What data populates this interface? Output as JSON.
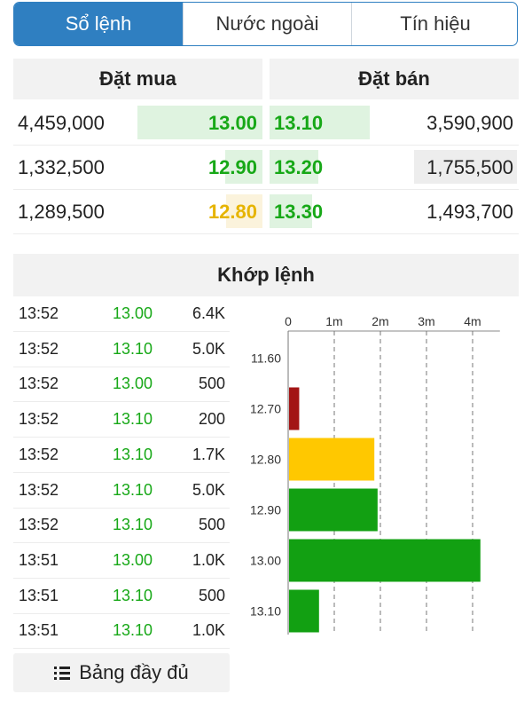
{
  "tabs": [
    {
      "label": "Sổ lệnh",
      "active": true
    },
    {
      "label": "Nước ngoài",
      "active": false
    },
    {
      "label": "Tín hiệu",
      "active": false
    }
  ],
  "order_book": {
    "buy_header": "Đặt mua",
    "sell_header": "Đặt bán",
    "rows": [
      {
        "buy_volume": "4,459,000",
        "buy_price": "13.00",
        "buy_price_color": "#17a817",
        "buy_bar": 1.0,
        "sell_price": "13.10",
        "sell_price_color": "#17a817",
        "sell_bar": 0.81,
        "sell_volume": "3,590,900"
      },
      {
        "buy_volume": "1,332,500",
        "buy_price": "12.90",
        "buy_price_color": "#17a817",
        "buy_bar": 0.3,
        "sell_price": "13.20",
        "sell_price_color": "#17a817",
        "sell_bar": 0.39,
        "sell_volume": "1,755,500"
      },
      {
        "buy_volume": "1,289,500",
        "buy_price": "12.80",
        "buy_price_color": "#e6b400",
        "buy_bar": 0.29,
        "sell_price": "13.30",
        "sell_price_color": "#17a817",
        "sell_bar": 0.34,
        "sell_volume": "1,493,700"
      }
    ]
  },
  "matched": {
    "header": "Khớp lệnh",
    "trades": [
      {
        "time": "13:52",
        "price": "13.00",
        "volume": "6.4K"
      },
      {
        "time": "13:52",
        "price": "13.10",
        "volume": "5.0K"
      },
      {
        "time": "13:52",
        "price": "13.00",
        "volume": "500"
      },
      {
        "time": "13:52",
        "price": "13.10",
        "volume": "200"
      },
      {
        "time": "13:52",
        "price": "13.10",
        "volume": "1.7K"
      },
      {
        "time": "13:52",
        "price": "13.10",
        "volume": "5.0K"
      },
      {
        "time": "13:52",
        "price": "13.10",
        "volume": "500"
      },
      {
        "time": "13:51",
        "price": "13.00",
        "volume": "1.0K"
      },
      {
        "time": "13:51",
        "price": "13.10",
        "volume": "500"
      },
      {
        "time": "13:51",
        "price": "13.10",
        "volume": "1.0K"
      }
    ],
    "full_table_label": "Bảng đầy đủ",
    "full_table_icon": "list-icon"
  },
  "chart_data": {
    "type": "bar",
    "orientation": "horizontal",
    "categories": [
      "11.60",
      "12.70",
      "12.80",
      "12.90",
      "13.00",
      "13.10"
    ],
    "values": [
      0,
      0.22,
      1.85,
      1.92,
      4.15,
      0.65
    ],
    "colors": [
      "#17a817",
      "#a31515",
      "#ffc800",
      "#12a012",
      "#12a012",
      "#12a012"
    ],
    "x_ticks": [
      0,
      1,
      2,
      3,
      4
    ],
    "x_tick_labels": [
      "0",
      "1m",
      "2m",
      "3m",
      "4m"
    ],
    "xlim": [
      0,
      4.4
    ],
    "grid": true,
    "title": "",
    "xlabel": "",
    "ylabel": ""
  }
}
